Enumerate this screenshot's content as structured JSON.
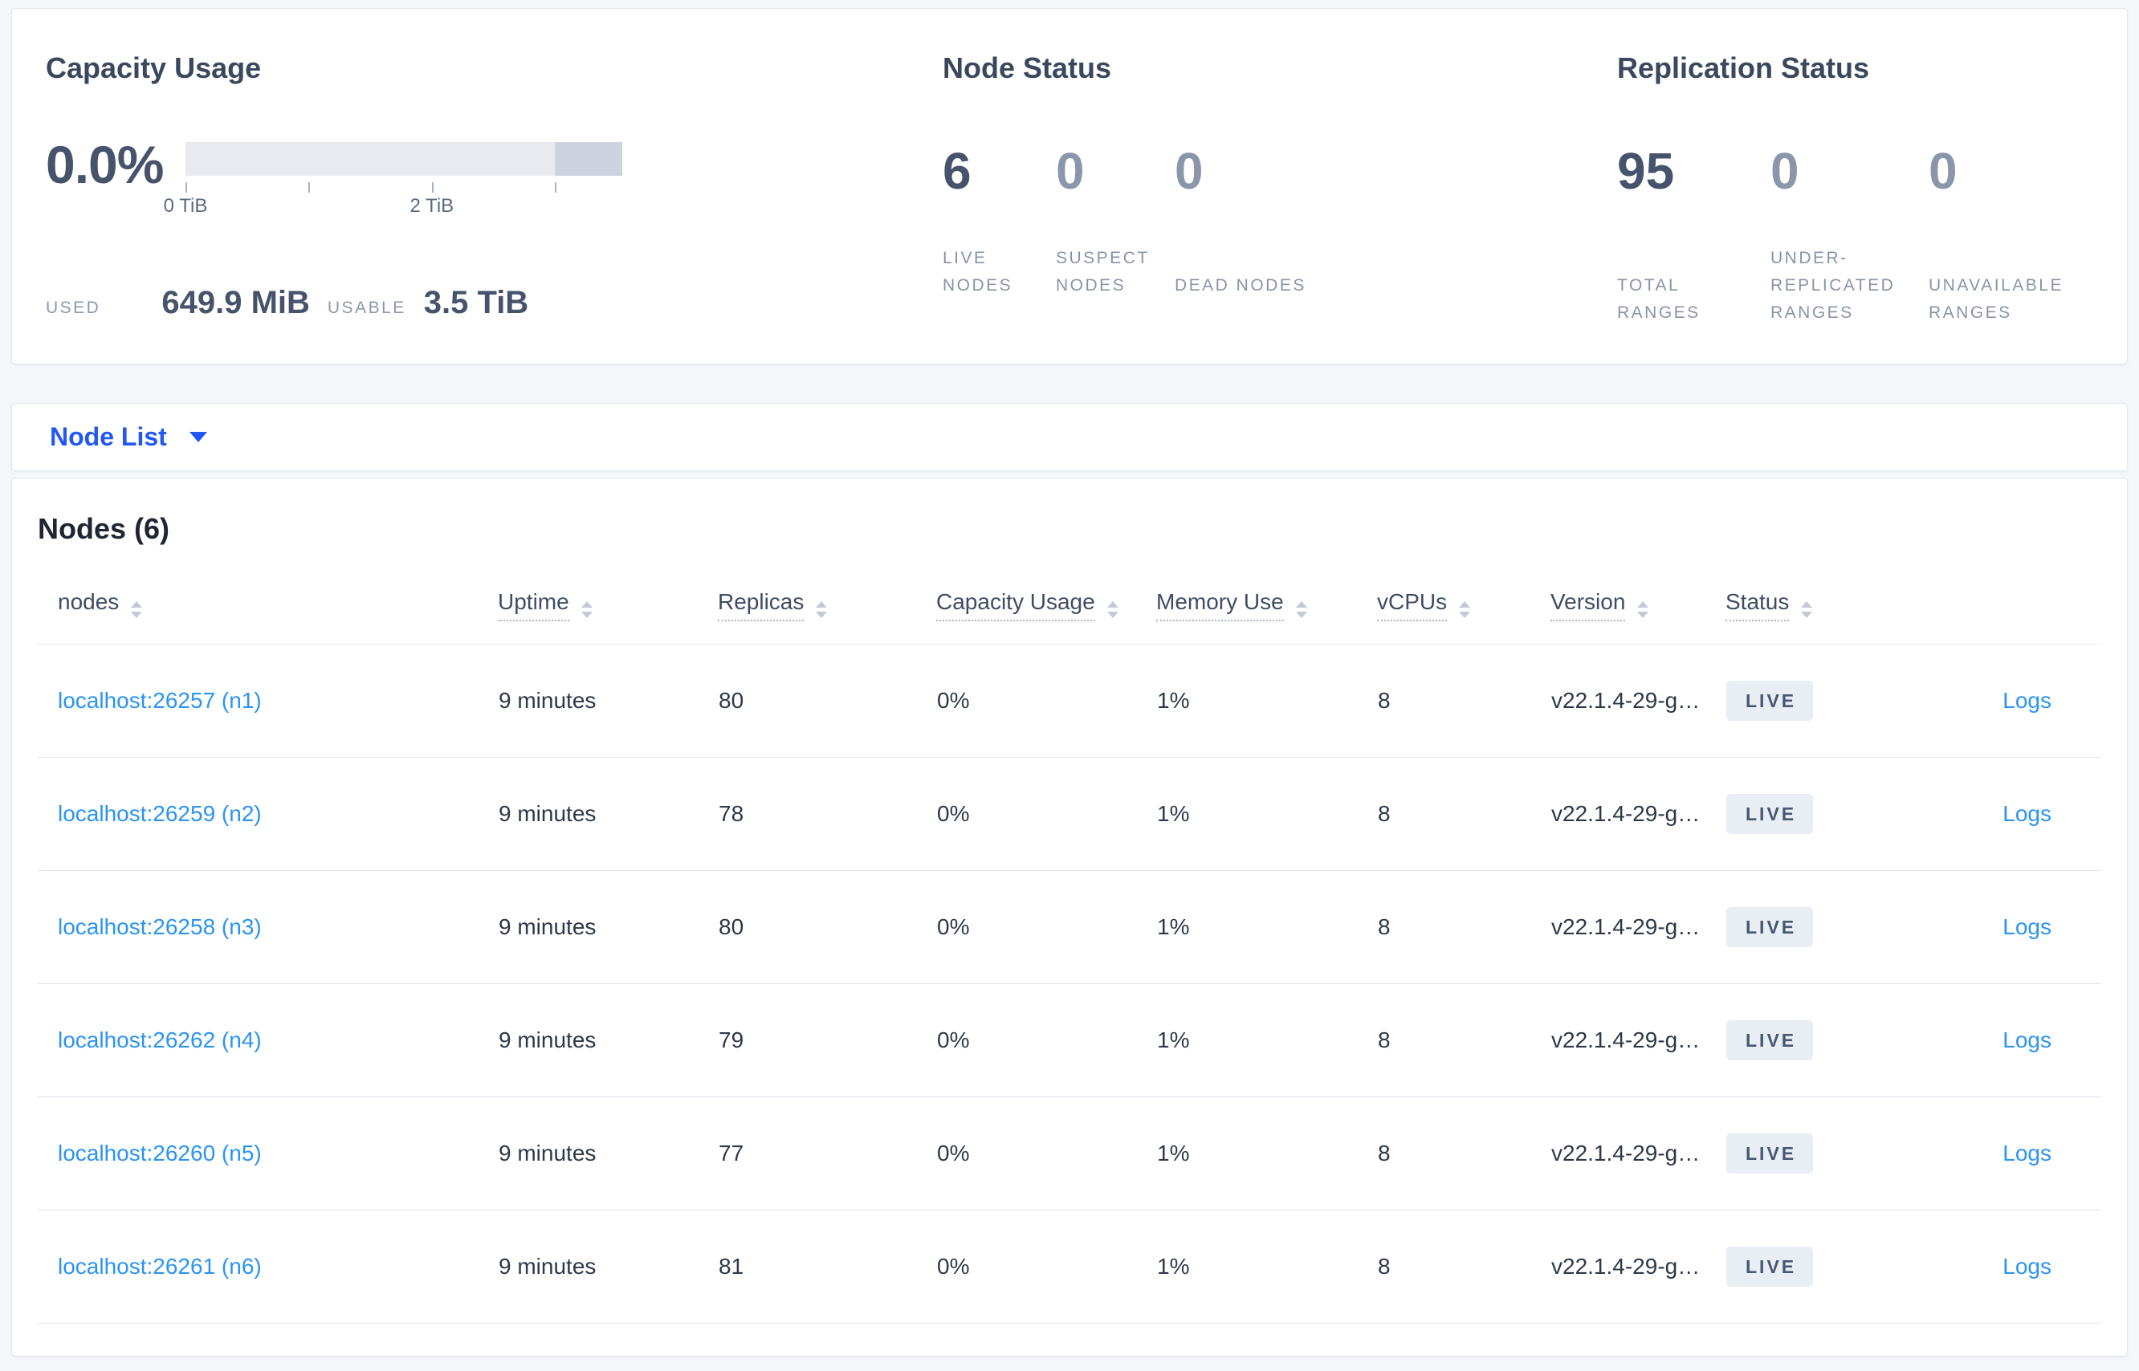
{
  "summary": {
    "capacity": {
      "title": "Capacity Usage",
      "percent": "0.0%",
      "tick_labels": [
        "0 TiB",
        "2 TiB"
      ],
      "used_label": "USED",
      "used_value": "649.9 MiB",
      "usable_label": "USABLE",
      "usable_value": "3.5 TiB",
      "bar_color": "#e8eaf0",
      "bar_tail_color": "#ced3df"
    },
    "node_status": {
      "title": "Node Status",
      "stats": [
        {
          "value": "6",
          "label": "LIVE NODES"
        },
        {
          "value": "0",
          "label": "SUSPECT NODES"
        },
        {
          "value": "0",
          "label": "DEAD NODES"
        }
      ]
    },
    "replication": {
      "title": "Replication Status",
      "stats": [
        {
          "value": "95",
          "label": "TOTAL RANGES"
        },
        {
          "value": "0",
          "label": "UNDER-REPLICATED RANGES"
        },
        {
          "value": "0",
          "label": "UNAVAILABLE RANGES"
        }
      ]
    }
  },
  "view_selector": {
    "label": "Node List"
  },
  "nodes_table": {
    "title": "Nodes (6)",
    "columns": [
      "nodes",
      "Uptime",
      "Replicas",
      "Capacity Usage",
      "Memory Use",
      "vCPUs",
      "Version",
      "Status"
    ],
    "rows": [
      {
        "node": "localhost:26257 (n1)",
        "uptime": "9 minutes",
        "replicas": "80",
        "capacity": "0%",
        "memory": "1%",
        "vcpus": "8",
        "version": "v22.1.4-29-g…",
        "status": "LIVE",
        "logs": "Logs"
      },
      {
        "node": "localhost:26259 (n2)",
        "uptime": "9 minutes",
        "replicas": "78",
        "capacity": "0%",
        "memory": "1%",
        "vcpus": "8",
        "version": "v22.1.4-29-g…",
        "status": "LIVE",
        "logs": "Logs"
      },
      {
        "node": "localhost:26258 (n3)",
        "uptime": "9 minutes",
        "replicas": "80",
        "capacity": "0%",
        "memory": "1%",
        "vcpus": "8",
        "version": "v22.1.4-29-g…",
        "status": "LIVE",
        "logs": "Logs"
      },
      {
        "node": "localhost:26262 (n4)",
        "uptime": "9 minutes",
        "replicas": "79",
        "capacity": "0%",
        "memory": "1%",
        "vcpus": "8",
        "version": "v22.1.4-29-g…",
        "status": "LIVE",
        "logs": "Logs"
      },
      {
        "node": "localhost:26260 (n5)",
        "uptime": "9 minutes",
        "replicas": "77",
        "capacity": "0%",
        "memory": "1%",
        "vcpus": "8",
        "version": "v22.1.4-29-g…",
        "status": "LIVE",
        "logs": "Logs"
      },
      {
        "node": "localhost:26261 (n6)",
        "uptime": "9 minutes",
        "replicas": "81",
        "capacity": "0%",
        "memory": "1%",
        "vcpus": "8",
        "version": "v22.1.4-29-g…",
        "status": "LIVE",
        "logs": "Logs"
      }
    ],
    "colors": {
      "accent_blue": "#2257f5",
      "link_blue": "#2b94f2",
      "badge_bg": "#e9edf4",
      "badge_text": "#475872"
    }
  }
}
